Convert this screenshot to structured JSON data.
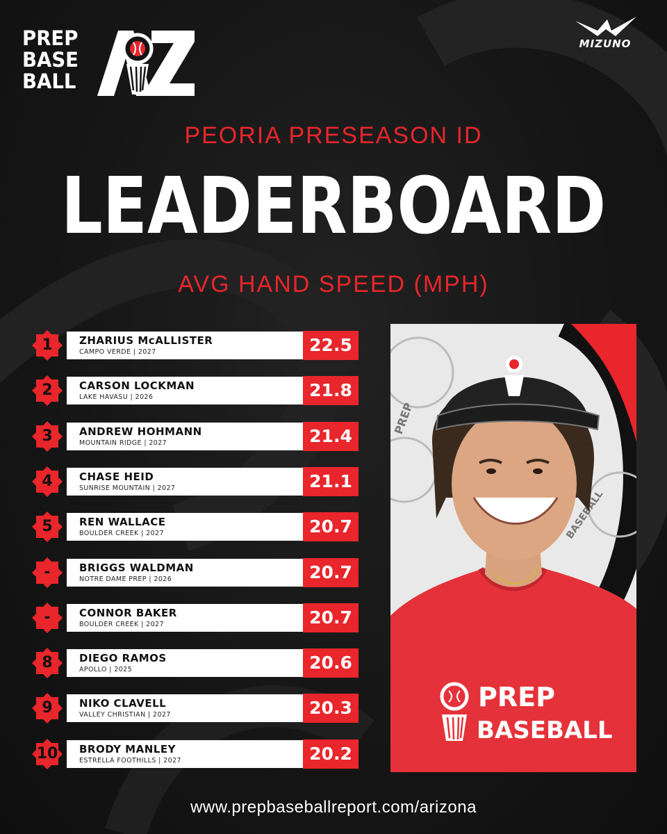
{
  "brand": {
    "logo_lines": [
      "PREP",
      "BASE",
      "BALL"
    ],
    "logo_region": "AZ",
    "sponsor": "MIZUNO"
  },
  "header": {
    "event": "PEORIA PRESEASON ID",
    "title": "LEADERBOARD",
    "metric": "AVG HAND SPEED (MPH)"
  },
  "leaderboard": [
    {
      "rank": "1",
      "name": "ZHARIUS McALLISTER",
      "meta": "CAMPO VERDE | 2027",
      "value": "22.5"
    },
    {
      "rank": "2",
      "name": "CARSON LOCKMAN",
      "meta": "LAKE HAVASU | 2026",
      "value": "21.8"
    },
    {
      "rank": "3",
      "name": "ANDREW HOHMANN",
      "meta": "MOUNTAIN RIDGE | 2027",
      "value": "21.4"
    },
    {
      "rank": "4",
      "name": "CHASE HEID",
      "meta": "SUNRISE MOUNTAIN | 2027",
      "value": "21.1"
    },
    {
      "rank": "5",
      "name": "REN WALLACE",
      "meta": "BOULDER CREEK | 2027",
      "value": "20.7"
    },
    {
      "rank": "-",
      "name": "BRIGGS WALDMAN",
      "meta": "NOTRE DAME PREP | 2026",
      "value": "20.7"
    },
    {
      "rank": "-",
      "name": "CONNOR BAKER",
      "meta": "BOULDER CREEK | 2027",
      "value": "20.7"
    },
    {
      "rank": "8",
      "name": "DIEGO RAMOS",
      "meta": "APOLLO | 2025",
      "value": "20.6"
    },
    {
      "rank": "9",
      "name": "NIKO CLAVELL",
      "meta": "VALLEY CHRISTIAN | 2027",
      "value": "20.3"
    },
    {
      "rank": "10",
      "name": "BRODY MANLEY",
      "meta": "ESTRELLA FOOTHILLS | 2027",
      "value": "20.2"
    }
  ],
  "photo": {
    "shirt_lines": [
      "PREP",
      "BASEBALL"
    ],
    "backdrop_lines": [
      "PREP",
      "BASEBALL"
    ]
  },
  "footer": {
    "url": "www.prepbaseballreport.com/arizona"
  },
  "colors": {
    "accent": "#e8262b",
    "background": "#141414",
    "text": "#ffffff"
  }
}
